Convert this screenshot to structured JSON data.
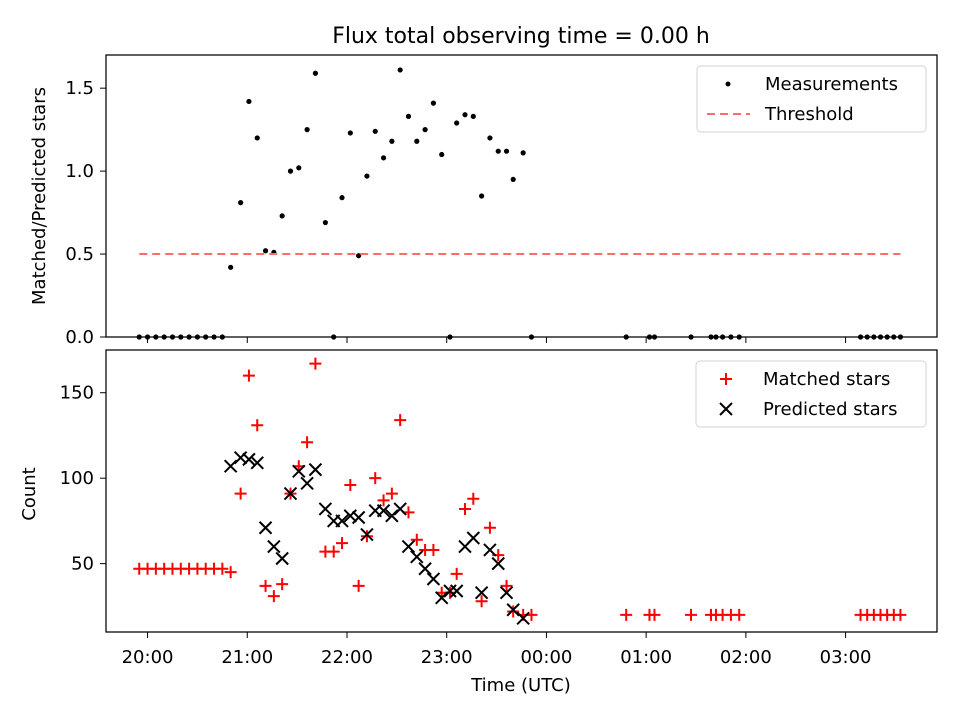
{
  "chart_data": [
    {
      "type": "scatter",
      "title": "Flux total observing time = 0.00 h",
      "xlabel": "",
      "ylabel": "Matched/Predicted stars",
      "xlim": [
        "19:35",
        "03:55"
      ],
      "ylim": [
        0,
        1.7
      ],
      "y_ticks": [
        "0.0",
        "0.5",
        "1.0",
        "1.5"
      ],
      "x_ticks": [
        "20:00",
        "21:00",
        "22:00",
        "23:00",
        "00:00",
        "01:00",
        "02:00",
        "03:00"
      ],
      "legend_position": "upper right",
      "series": [
        {
          "name": "Measurements",
          "marker": "dot",
          "color": "#000000",
          "points": [
            [
              "19:55",
              0
            ],
            [
              "20:00",
              0
            ],
            [
              "20:05",
              0
            ],
            [
              "20:10",
              0
            ],
            [
              "20:15",
              0
            ],
            [
              "20:20",
              0
            ],
            [
              "20:25",
              0
            ],
            [
              "20:30",
              0
            ],
            [
              "20:35",
              0
            ],
            [
              "20:40",
              0
            ],
            [
              "20:45",
              0
            ],
            [
              "20:50",
              0.42
            ],
            [
              "20:56",
              0.81
            ],
            [
              "21:01",
              1.42
            ],
            [
              "21:06",
              1.2
            ],
            [
              "21:11",
              0.52
            ],
            [
              "21:16",
              0.51
            ],
            [
              "21:21",
              0.73
            ],
            [
              "21:26",
              1.0
            ],
            [
              "21:31",
              1.02
            ],
            [
              "21:36",
              1.25
            ],
            [
              "21:41",
              1.59
            ],
            [
              "21:47",
              0.69
            ],
            [
              "21:52",
              0.0
            ],
            [
              "21:57",
              0.84
            ],
            [
              "22:02",
              1.23
            ],
            [
              "22:07",
              0.49
            ],
            [
              "22:12",
              0.97
            ],
            [
              "22:17",
              1.24
            ],
            [
              "22:22",
              1.08
            ],
            [
              "22:27",
              1.18
            ],
            [
              "22:32",
              1.61
            ],
            [
              "22:37",
              1.33
            ],
            [
              "22:42",
              1.18
            ],
            [
              "22:47",
              1.25
            ],
            [
              "22:52",
              1.41
            ],
            [
              "22:57",
              1.1
            ],
            [
              "23:02",
              0.0
            ],
            [
              "23:06",
              1.29
            ],
            [
              "23:11",
              1.34
            ],
            [
              "23:16",
              1.33
            ],
            [
              "23:21",
              0.85
            ],
            [
              "23:26",
              1.2
            ],
            [
              "23:31",
              1.12
            ],
            [
              "23:36",
              1.12
            ],
            [
              "23:40",
              0.95
            ],
            [
              "23:46",
              1.11
            ],
            [
              "23:51",
              0.0
            ],
            [
              "00:48",
              0
            ],
            [
              "01:02",
              0
            ],
            [
              "01:05",
              0
            ],
            [
              "01:27",
              0
            ],
            [
              "01:39",
              0
            ],
            [
              "01:42",
              0
            ],
            [
              "01:46",
              0
            ],
            [
              "01:51",
              0
            ],
            [
              "01:56",
              0
            ],
            [
              "03:09",
              0
            ],
            [
              "03:13",
              0
            ],
            [
              "03:17",
              0
            ],
            [
              "03:21",
              0
            ],
            [
              "03:25",
              0
            ],
            [
              "03:29",
              0
            ],
            [
              "03:33",
              0
            ]
          ]
        },
        {
          "name": "Threshold",
          "line_style": "dashed",
          "color": "#ff6b6b",
          "points": [
            [
              "19:55",
              0.5
            ],
            [
              "03:33",
              0.5
            ]
          ]
        }
      ]
    },
    {
      "type": "scatter",
      "title": "",
      "xlabel": "Time (UTC)",
      "ylabel": "Count",
      "xlim": [
        "19:35",
        "03:55"
      ],
      "ylim": [
        10,
        175
      ],
      "y_ticks": [
        "50",
        "100",
        "150"
      ],
      "x_ticks": [
        "20:00",
        "21:00",
        "22:00",
        "23:00",
        "00:00",
        "01:00",
        "02:00",
        "03:00"
      ],
      "legend_position": "upper right",
      "series": [
        {
          "name": "Matched stars",
          "marker": "plus",
          "color": "#ff0000",
          "points": [
            [
              "19:55",
              47
            ],
            [
              "20:00",
              47
            ],
            [
              "20:05",
              47
            ],
            [
              "20:10",
              47
            ],
            [
              "20:15",
              47
            ],
            [
              "20:20",
              47
            ],
            [
              "20:25",
              47
            ],
            [
              "20:30",
              47
            ],
            [
              "20:35",
              47
            ],
            [
              "20:40",
              47
            ],
            [
              "20:45",
              47
            ],
            [
              "20:50",
              45
            ],
            [
              "20:56",
              91
            ],
            [
              "21:01",
              160
            ],
            [
              "21:06",
              131
            ],
            [
              "21:11",
              37
            ],
            [
              "21:16",
              31
            ],
            [
              "21:21",
              38
            ],
            [
              "21:26",
              91
            ],
            [
              "21:31",
              107
            ],
            [
              "21:36",
              121
            ],
            [
              "21:41",
              167
            ],
            [
              "21:47",
              57
            ],
            [
              "21:52",
              57
            ],
            [
              "21:57",
              62
            ],
            [
              "22:02",
              96
            ],
            [
              "22:07",
              37
            ],
            [
              "22:12",
              66
            ],
            [
              "22:17",
              100
            ],
            [
              "22:22",
              87
            ],
            [
              "22:27",
              91
            ],
            [
              "22:32",
              134
            ],
            [
              "22:37",
              80
            ],
            [
              "22:42",
              64
            ],
            [
              "22:47",
              58
            ],
            [
              "22:52",
              58
            ],
            [
              "22:57",
              33
            ],
            [
              "23:02",
              33
            ],
            [
              "23:06",
              44
            ],
            [
              "23:11",
              82
            ],
            [
              "23:16",
              88
            ],
            [
              "23:21",
              28
            ],
            [
              "23:26",
              71
            ],
            [
              "23:31",
              55
            ],
            [
              "23:36",
              37
            ],
            [
              "23:40",
              22
            ],
            [
              "23:46",
              20
            ],
            [
              "23:51",
              20
            ],
            [
              "00:48",
              20
            ],
            [
              "01:02",
              20
            ],
            [
              "01:05",
              20
            ],
            [
              "01:27",
              20
            ],
            [
              "01:39",
              20
            ],
            [
              "01:42",
              20
            ],
            [
              "01:46",
              20
            ],
            [
              "01:51",
              20
            ],
            [
              "01:56",
              20
            ],
            [
              "03:09",
              20
            ],
            [
              "03:13",
              20
            ],
            [
              "03:17",
              20
            ],
            [
              "03:21",
              20
            ],
            [
              "03:25",
              20
            ],
            [
              "03:29",
              20
            ],
            [
              "03:33",
              20
            ]
          ]
        },
        {
          "name": "Predicted stars",
          "marker": "x",
          "color": "#000000",
          "points": [
            [
              "20:50",
              107
            ],
            [
              "20:56",
              112
            ],
            [
              "21:01",
              111
            ],
            [
              "21:06",
              109
            ],
            [
              "21:11",
              71
            ],
            [
              "21:16",
              60
            ],
            [
              "21:21",
              53
            ],
            [
              "21:26",
              91
            ],
            [
              "21:31",
              104
            ],
            [
              "21:36",
              97
            ],
            [
              "21:41",
              105
            ],
            [
              "21:47",
              82
            ],
            [
              "21:52",
              75
            ],
            [
              "21:57",
              75
            ],
            [
              "22:02",
              78
            ],
            [
              "22:07",
              77
            ],
            [
              "22:12",
              67
            ],
            [
              "22:17",
              81
            ],
            [
              "22:22",
              81
            ],
            [
              "22:27",
              78
            ],
            [
              "22:32",
              82
            ],
            [
              "22:37",
              60
            ],
            [
              "22:42",
              54
            ],
            [
              "22:47",
              47
            ],
            [
              "22:52",
              41
            ],
            [
              "22:57",
              30
            ],
            [
              "23:02",
              34
            ],
            [
              "23:06",
              34
            ],
            [
              "23:11",
              60
            ],
            [
              "23:16",
              65
            ],
            [
              "23:21",
              33
            ],
            [
              "23:26",
              58
            ],
            [
              "23:31",
              50
            ],
            [
              "23:36",
              33
            ],
            [
              "23:40",
              23
            ],
            [
              "23:46",
              18
            ]
          ]
        }
      ]
    }
  ]
}
